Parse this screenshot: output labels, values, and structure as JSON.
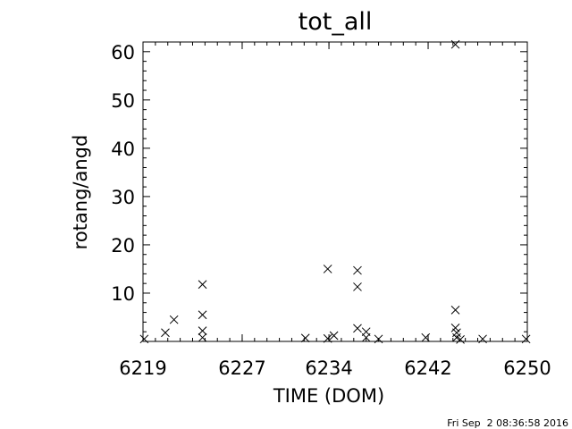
{
  "chart_data": {
    "type": "scatter",
    "title": "tot_all",
    "xlabel": "TIME (DOM)",
    "ylabel": "rotang/angd",
    "xlim": [
      6219,
      6250
    ],
    "ylim": [
      0,
      62
    ],
    "xticks": [
      "6219",
      "6227",
      "6234",
      "6242",
      "6250"
    ],
    "yticks": [
      "10",
      "20",
      "30",
      "40",
      "50",
      "60"
    ],
    "grid": false,
    "marker": "x",
    "points": [
      {
        "x": 6219.1,
        "y": 0.5
      },
      {
        "x": 6220.8,
        "y": 1.8
      },
      {
        "x": 6221.5,
        "y": 4.5
      },
      {
        "x": 6223.8,
        "y": 11.8
      },
      {
        "x": 6223.8,
        "y": 5.5
      },
      {
        "x": 6223.8,
        "y": 2.2
      },
      {
        "x": 6223.8,
        "y": 0.8
      },
      {
        "x": 6232.1,
        "y": 0.7
      },
      {
        "x": 6233.9,
        "y": 15.0
      },
      {
        "x": 6233.9,
        "y": 0.6
      },
      {
        "x": 6234.4,
        "y": 1.2
      },
      {
        "x": 6236.3,
        "y": 14.7
      },
      {
        "x": 6236.3,
        "y": 11.3
      },
      {
        "x": 6236.3,
        "y": 2.7
      },
      {
        "x": 6237.0,
        "y": 2.0
      },
      {
        "x": 6237.0,
        "y": 0.8
      },
      {
        "x": 6238.0,
        "y": 0.5
      },
      {
        "x": 6241.8,
        "y": 0.8
      },
      {
        "x": 6244.2,
        "y": 61.5
      },
      {
        "x": 6244.2,
        "y": 6.5
      },
      {
        "x": 6244.2,
        "y": 2.8
      },
      {
        "x": 6244.3,
        "y": 1.8
      },
      {
        "x": 6244.3,
        "y": 0.8
      },
      {
        "x": 6244.6,
        "y": 0.4
      },
      {
        "x": 6246.4,
        "y": 0.5
      },
      {
        "x": 6249.9,
        "y": 0.5
      }
    ]
  },
  "footer": {
    "timestamp": "Fri Sep  2 08:36:58 2016"
  }
}
